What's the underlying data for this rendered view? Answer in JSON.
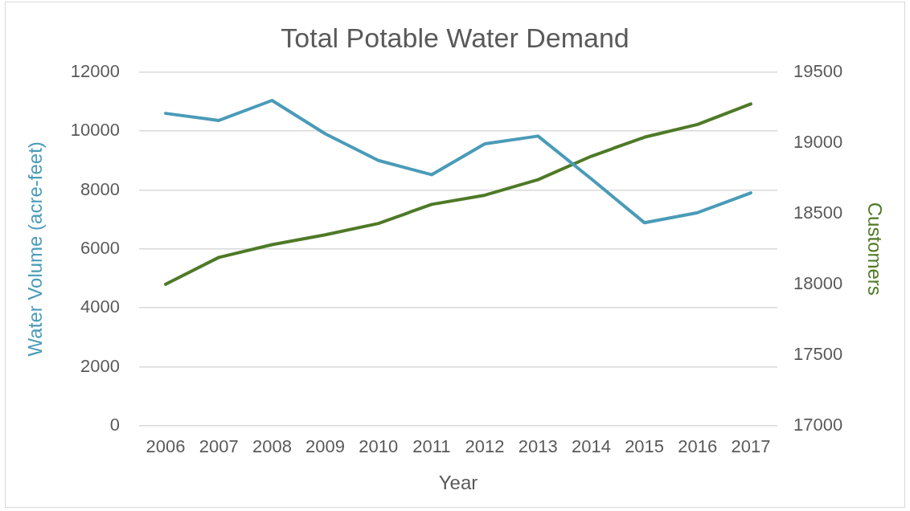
{
  "chart_data": {
    "type": "line",
    "title": "Total Potable Water Demand",
    "xlabel": "Year",
    "ylabel": "Water Volume (acre-feet)",
    "y2label": "Customers",
    "categories": [
      "2006",
      "2007",
      "2008",
      "2009",
      "2010",
      "2011",
      "2012",
      "2013",
      "2014",
      "2015",
      "2016",
      "2017"
    ],
    "series": [
      {
        "color": "#4a9bb8",
        "values": [
          10600,
          10360,
          11040,
          9910,
          9000,
          8520,
          9570,
          9830,
          8380,
          6890,
          7230,
          7900
        ]
      },
      {
        "color": "#4e7a27",
        "axis": "y2",
        "values": [
          18000,
          18190,
          18280,
          18350,
          18430,
          18565,
          18630,
          18740,
          18905,
          19040,
          19130,
          19275
        ]
      }
    ],
    "ylim": [
      0,
      12000
    ],
    "yticks": [
      0,
      2000,
      4000,
      6000,
      8000,
      10000,
      12000
    ],
    "y2lim": [
      17000,
      19500
    ],
    "y2ticks": [
      17000,
      17500,
      18000,
      18500,
      19000,
      19500
    ],
    "grid": "y",
    "legend": false,
    "marker": "none",
    "line_style": "solid"
  }
}
